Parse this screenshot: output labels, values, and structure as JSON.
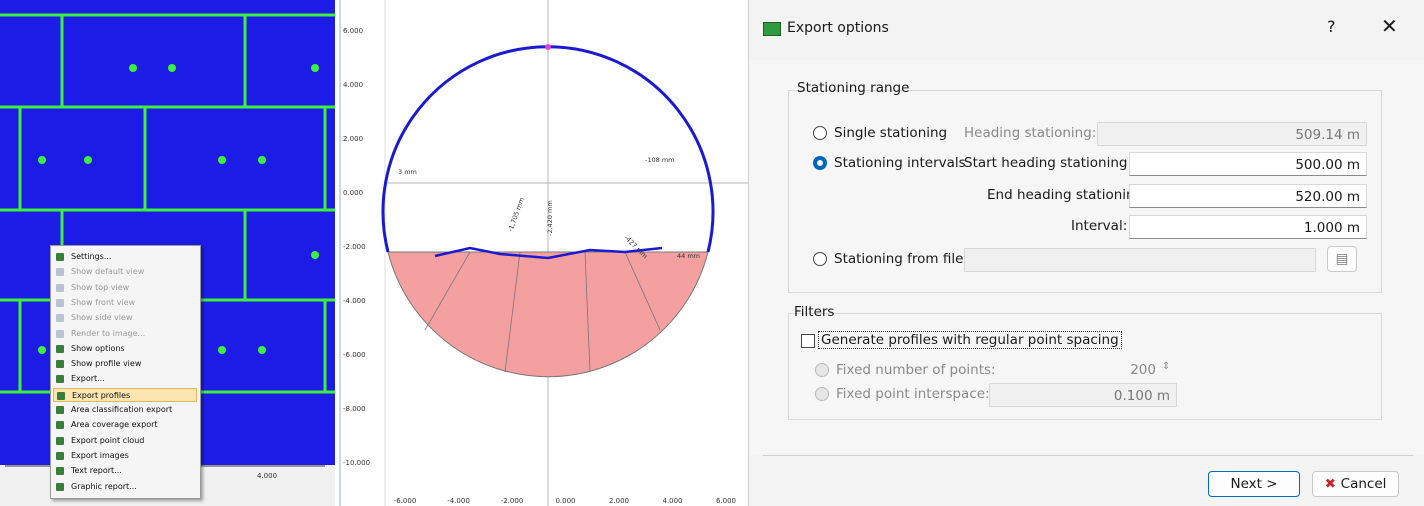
{
  "scan_view": {
    "scale_label": "4.000",
    "context_menu": [
      {
        "label": "Settings...",
        "enabled": true
      },
      {
        "label": "Show default view",
        "enabled": false
      },
      {
        "label": "Show top view",
        "enabled": false
      },
      {
        "label": "Show front view",
        "enabled": false
      },
      {
        "label": "Show side view",
        "enabled": false
      },
      {
        "label": "Render to image...",
        "enabled": false
      },
      {
        "label": "Show options",
        "enabled": true
      },
      {
        "label": "Show profile view",
        "enabled": true
      },
      {
        "label": "Export...",
        "enabled": true
      },
      {
        "label": "Export profiles",
        "enabled": true,
        "highlighted": true
      },
      {
        "label": "Area classification export",
        "enabled": true
      },
      {
        "label": "Area coverage export",
        "enabled": true
      },
      {
        "label": "Export point cloud",
        "enabled": true
      },
      {
        "label": "Export images",
        "enabled": true
      },
      {
        "label": "Text report...",
        "enabled": true
      },
      {
        "label": "Graphic report...",
        "enabled": true
      }
    ]
  },
  "profile_view": {
    "y_labels": [
      "6.000",
      "4.000",
      "2.000",
      "0.000",
      "-2.000",
      "-4.000",
      "-6.000",
      "-8.000",
      "-10.000"
    ],
    "x_labels": [
      "-6.000",
      "-4.000",
      "-2.000",
      "0.000",
      "2.000",
      "4.000",
      "6.000"
    ],
    "deviation_labels": [
      "3 mm",
      "-108 mm",
      "-1,705 mm",
      "-2,420 mm",
      "-427 mm",
      "44 mm"
    ]
  },
  "dialog": {
    "title": "Export options",
    "help": "?",
    "stationing_range": {
      "title": "Stationing range",
      "single": {
        "label": "Single stationing",
        "selected": false,
        "field_label": "Heading stationing:",
        "value": "509.14 m"
      },
      "intervals": {
        "label": "Stationing intervals",
        "selected": true,
        "start_label": "Start heading stationing:",
        "start_value": "500.00 m",
        "end_label": "End heading stationing:",
        "end_value": "520.00 m",
        "interval_label": "Interval:",
        "interval_value": "1.000 m"
      },
      "from_file": {
        "label": "Stationing from file",
        "selected": false
      }
    },
    "filters": {
      "title": "Filters",
      "regular_spacing": {
        "label": "Generate profiles with regular point spacing",
        "checked": false
      },
      "fixed_points": {
        "label": "Fixed number of points:",
        "value": "200"
      },
      "fixed_interspace": {
        "label": "Fixed point interspace:",
        "value": "0.100 m"
      }
    },
    "buttons": {
      "next": "Next >",
      "cancel": "Cancel"
    }
  }
}
